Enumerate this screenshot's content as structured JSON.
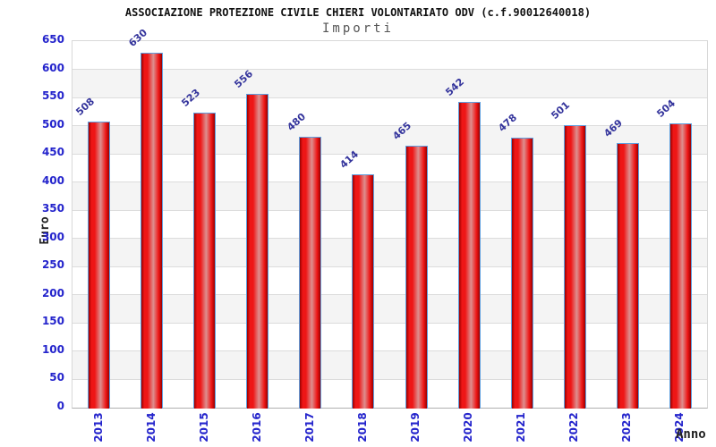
{
  "header": {
    "title": "ASSOCIAZIONE PROTEZIONE CIVILE CHIERI VOLONTARIATO ODV (c.f.90012640018)",
    "subtitle": "Importi"
  },
  "chart_data": {
    "type": "bar",
    "title": "ASSOCIAZIONE PROTEZIONE CIVILE CHIERI VOLONTARIATO ODV (c.f.90012640018)",
    "subtitle": "Importi",
    "categories": [
      "2013",
      "2014",
      "2015",
      "2016",
      "2017",
      "2018",
      "2019",
      "2020",
      "2021",
      "2022",
      "2023",
      "2024"
    ],
    "values": [
      508,
      630,
      523,
      556,
      480,
      414,
      465,
      542,
      478,
      501,
      469,
      504
    ],
    "xlabel": "Anno",
    "ylabel": "Euro",
    "ylim": [
      0,
      650
    ],
    "ytick_step": 50,
    "grid": true,
    "legend": "none",
    "band_alternating": true,
    "colors": {
      "bar_main": "#ee1616",
      "bar_light": "#dd8f8f",
      "bar_dark": "#990000",
      "bar_border": "#5e9fdf",
      "tick_label": "#2424cc",
      "value_label": "#34349c",
      "band_fill": "#f4f4f4",
      "grid_line": "#dcdcdc",
      "axis_line": "#b0b0b0",
      "title_color": "#111111",
      "subtitle_color": "#555555"
    }
  }
}
